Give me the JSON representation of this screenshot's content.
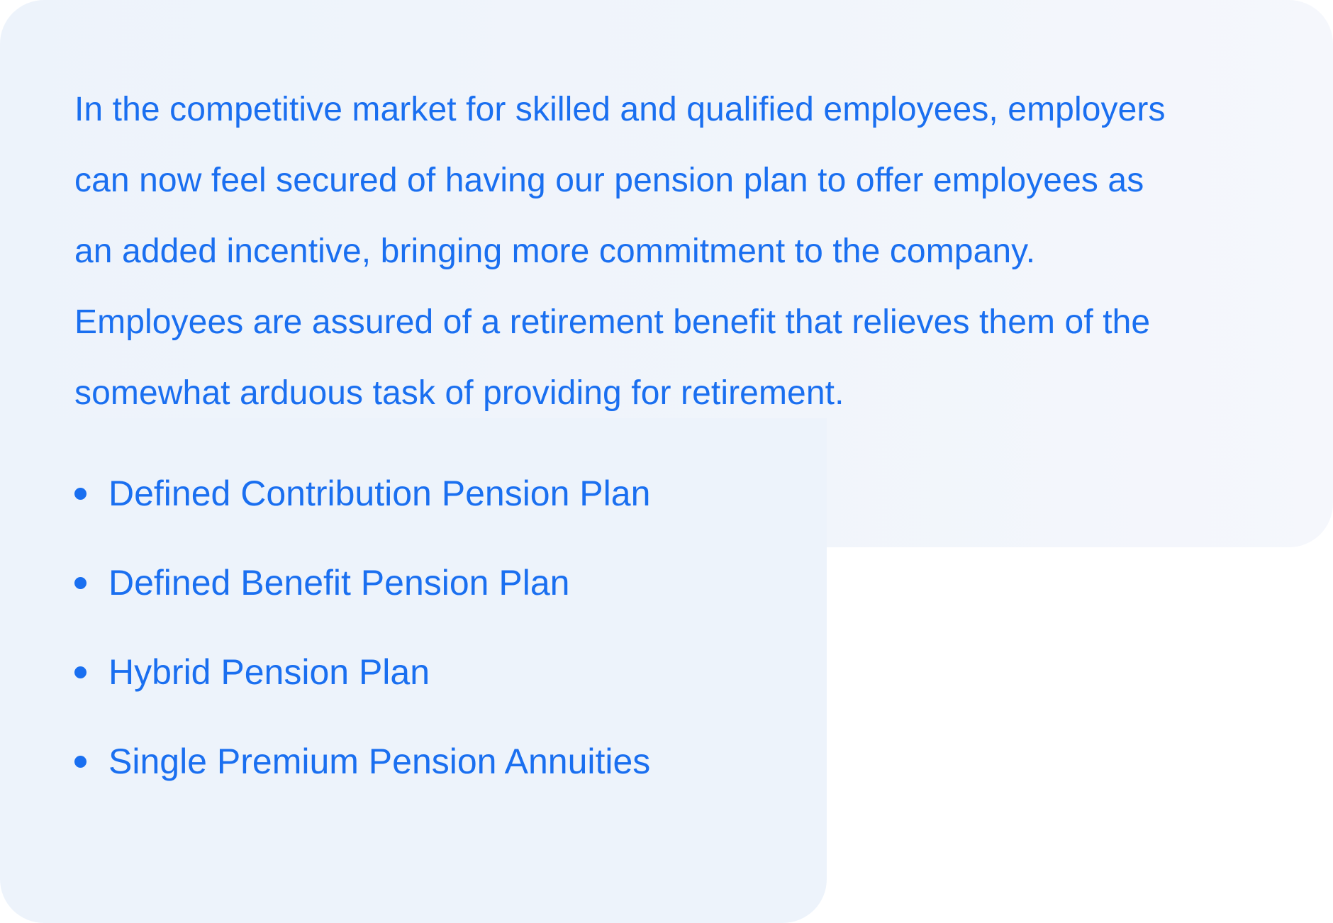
{
  "content": {
    "intro": "In the competitive market for skilled and qualified employees, employers can now feel secured of having our pension plan to offer employees as an added incentive, bringing more commitment to the company. Employees are assured of a retirement benefit that relieves them of the somewhat arduous task of providing for retirement.",
    "plans": [
      "Defined Contribution Pension Plan",
      "Defined Benefit Pension Plan",
      "Hybrid Pension Plan",
      "Single Premium Pension Annuities"
    ]
  },
  "colors": {
    "text": "#1a6ff0",
    "panel": "#edf3fb",
    "background": "#ffffff"
  }
}
